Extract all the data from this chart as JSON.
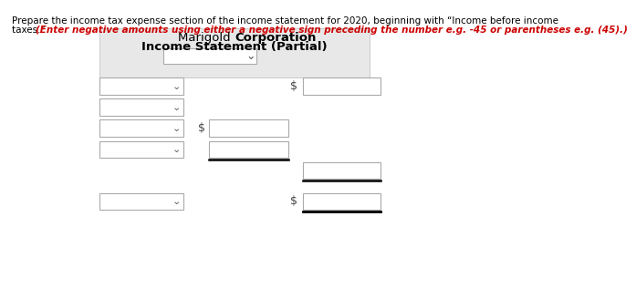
{
  "title_line1": "Marigold Corporation",
  "title_line2": "Income Statement (Partial)",
  "instruction_line1": "Prepare the income tax expense section of the income statement for 2020, beginning with “Income before income",
  "instruction_line2_black": "taxes.” ",
  "instruction_line2_red": "(Enter negative amounts using either a negative sign preceding the number e.g. -45 or parentheses e.g. (45).)",
  "bg_color": "#f0f0f0",
  "box_color": "#ffffff",
  "box_edge": "#aaaaaa",
  "underline_color": "#000000",
  "dollar_sign_color": "#444444",
  "chevron_color": "#555555",
  "text_color_black": "#000000",
  "text_color_red": "#cc0000",
  "header_bg": "#e8e8e8",
  "fig_bg": "#ffffff",
  "rows": [
    {
      "has_dropdown_left": true,
      "has_dollar_mid": false,
      "has_input_mid": false,
      "has_dollar_right": true,
      "has_input_right": true,
      "has_input_mid_nodollar": false,
      "has_box_right_nodollar": false,
      "underline_mid": false,
      "underline_right": false
    },
    {
      "has_dropdown_left": true,
      "has_dollar_mid": false,
      "has_input_mid": false,
      "has_dollar_right": false,
      "has_input_right": false,
      "has_input_mid_nodollar": false,
      "has_box_right_nodollar": false,
      "underline_mid": false,
      "underline_right": false
    },
    {
      "has_dropdown_left": true,
      "has_dollar_mid": true,
      "has_input_mid": true,
      "has_dollar_right": false,
      "has_input_right": false,
      "has_input_mid_nodollar": false,
      "has_box_right_nodollar": false,
      "underline_mid": false,
      "underline_right": false
    },
    {
      "has_dropdown_left": true,
      "has_dollar_mid": false,
      "has_input_mid": false,
      "has_dollar_right": false,
      "has_input_right": false,
      "has_input_mid_nodollar": true,
      "has_box_right_nodollar": false,
      "underline_mid": true,
      "underline_right": false
    },
    {
      "has_dropdown_left": false,
      "has_dollar_mid": false,
      "has_input_mid": false,
      "has_dollar_right": false,
      "has_input_right": false,
      "has_input_mid_nodollar": false,
      "has_box_right_nodollar": true,
      "underline_mid": false,
      "underline_right": true
    },
    {
      "has_dropdown_left": true,
      "has_dollar_mid": false,
      "has_input_mid": false,
      "has_dollar_right": true,
      "has_input_right": true,
      "has_input_mid_nodollar": false,
      "has_box_right_nodollar": false,
      "underline_mid": false,
      "underline_right": true
    }
  ]
}
